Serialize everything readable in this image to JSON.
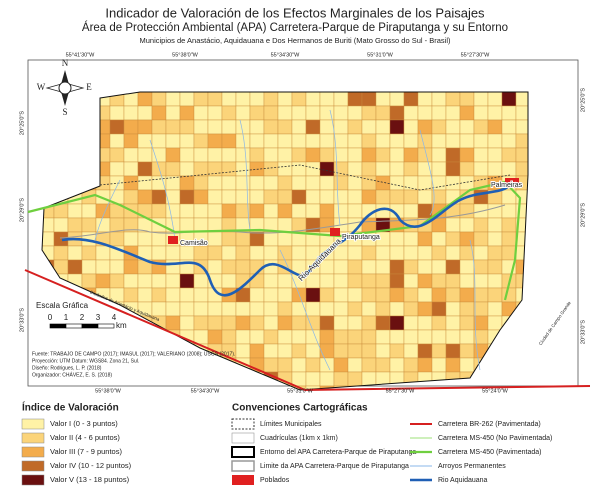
{
  "title": "Indicador de Valoración de los Efectos Marginales de los Paisajes",
  "subtitle": "Área de Protección Ambiental (APA) Carretera-Parque de Piraputanga y su Entorno",
  "region": "Municipios de Anastácio, Aquidauana e Dos Hermanos de Buriti (Mato Grosso do Sul - Brasil)",
  "compass": {
    "n": "N",
    "s": "S",
    "e": "E",
    "w": "W"
  },
  "coordinates": {
    "top": [
      "55°41'30\"W",
      "55°38'0\"W",
      "55°34'30\"W",
      "55°31'0\"W",
      "55°27'30\"W"
    ],
    "bottom": [
      "55°38'0\"W",
      "55°34'30\"W",
      "55°31'0\"W",
      "55°27'30\"W",
      "55°24'0\"W"
    ],
    "left": [
      "20°25'0\"S",
      "20°29'0\"S",
      "20°33'0\"S"
    ],
    "right": [
      "20°25'0\"S",
      "20°29'0\"S",
      "20°33'0\"S"
    ]
  },
  "places": [
    "Camisão",
    "Piraputanga",
    "Palmeiras"
  ],
  "river_label": "Rio Aquidauana",
  "road_labels": [
    "Ciudades de Anastácio y Aquidauana",
    "Ciudad de Campo Grande"
  ],
  "scale": {
    "title": "Escala Gráfica",
    "ticks": [
      "0",
      "1",
      "2",
      "3",
      "4"
    ],
    "unit": "km"
  },
  "credits": [
    "Fuente: TRABAJO DE CAMPO (2017); IMASUL (2017); VALERIANO (2008); USGS (2017).",
    "Proyección: UTM Datum: WGS84. Zona 21, Sul.",
    "Diseño: Rodrigues, L. P. (2018)",
    "Organizador: CHÁVEZ, E. S. (2018)"
  ],
  "index_legend": {
    "title": "Índice de Valoración",
    "items": [
      {
        "label": "Valor I (0 - 3 puntos)",
        "color": "#fff2a6"
      },
      {
        "label": "Valor II (4 - 6 puntos)",
        "color": "#fbd47a"
      },
      {
        "label": "Valor III (7 - 9 puntos)",
        "color": "#f3ac4c"
      },
      {
        "label": "Valor IV (10 - 12 puntos)",
        "color": "#c06a28"
      },
      {
        "label": "Valor V (13 - 18 puntos)",
        "color": "#6a1010"
      }
    ]
  },
  "conventions": {
    "title": "Convenciones Cartográficas",
    "items": [
      {
        "label": "Límites Municipales"
      },
      {
        "label": "Cuadrículas (1km x 1km)"
      },
      {
        "label": "Entorno del APA Carretera-Parque de Piraputanga"
      },
      {
        "label": "Limite da APA Carretera-Parque de Piraputanga"
      },
      {
        "label": "Poblados"
      },
      {
        "label": "Carretera BR-262 (Pavimentada)"
      },
      {
        "label": "Carretera MS-450 (No Pavimentada)"
      },
      {
        "label": "Carretera MS-450 (Pavimentada)"
      },
      {
        "label": "Arroyos Permanentes"
      },
      {
        "label": "Rio Aquidauana"
      }
    ]
  }
}
